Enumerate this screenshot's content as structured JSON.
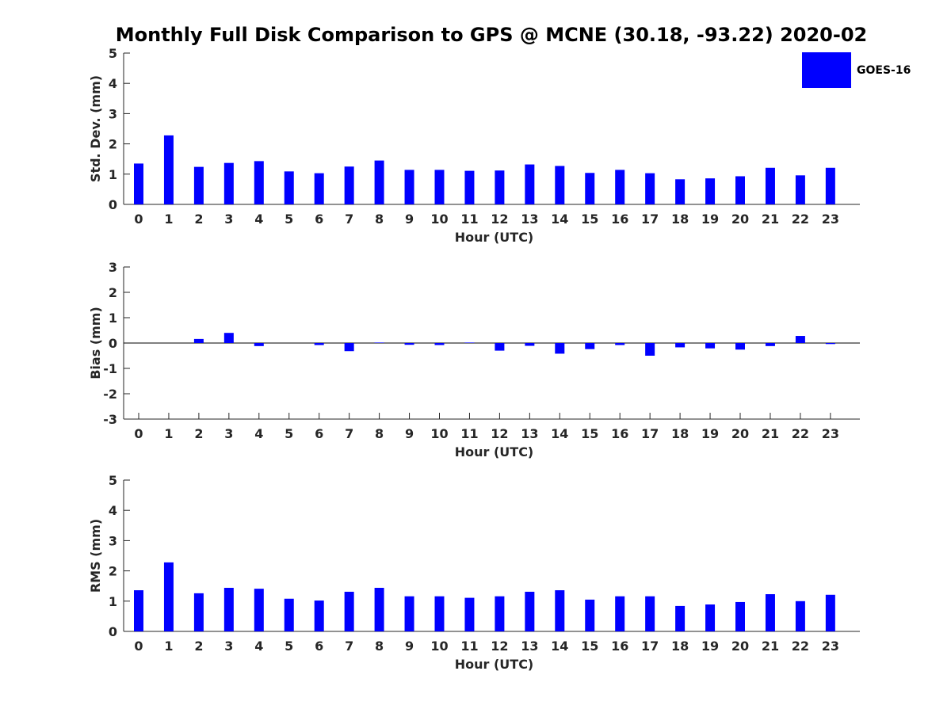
{
  "title": "Monthly Full Disk Comparison to GPS @ MCNE (30.18, -93.22) 2020-02",
  "legend": {
    "label": "GOES-16",
    "color": "#0000ff"
  },
  "chart_data": [
    {
      "type": "bar",
      "xlabel": "Hour (UTC)",
      "ylabel": "Std. Dev. (mm)",
      "ylim": [
        0,
        5
      ],
      "yticks": [
        0,
        1,
        2,
        3,
        4,
        5
      ],
      "categories": [
        0,
        1,
        2,
        3,
        4,
        5,
        6,
        7,
        8,
        9,
        10,
        11,
        12,
        13,
        14,
        15,
        16,
        17,
        18,
        19,
        20,
        21,
        22,
        23
      ],
      "series": [
        {
          "name": "GOES-16",
          "color": "#0000ff",
          "values": [
            1.35,
            2.28,
            1.24,
            1.37,
            1.43,
            1.09,
            1.03,
            1.25,
            1.45,
            1.14,
            1.14,
            1.11,
            1.12,
            1.32,
            1.27,
            1.04,
            1.14,
            1.03,
            0.83,
            0.86,
            0.93,
            1.21,
            0.96,
            1.21
          ]
        }
      ]
    },
    {
      "type": "bar",
      "xlabel": "Hour (UTC)",
      "ylabel": "Bias (mm)",
      "ylim": [
        -3,
        3
      ],
      "yticks": [
        -3,
        -2,
        -1,
        0,
        1,
        2,
        3
      ],
      "categories": [
        0,
        1,
        2,
        3,
        4,
        5,
        6,
        7,
        8,
        9,
        10,
        11,
        12,
        13,
        14,
        15,
        16,
        17,
        18,
        19,
        20,
        21,
        22,
        23
      ],
      "series": [
        {
          "name": "GOES-16",
          "color": "#0000ff",
          "values": [
            0.0,
            0.0,
            0.16,
            0.4,
            -0.12,
            0.0,
            -0.08,
            -0.32,
            0.02,
            -0.07,
            -0.08,
            0.02,
            -0.3,
            -0.11,
            -0.42,
            -0.24,
            -0.08,
            -0.5,
            -0.17,
            -0.21,
            -0.26,
            -0.12,
            0.28,
            -0.04
          ]
        }
      ]
    },
    {
      "type": "bar",
      "xlabel": "Hour (UTC)",
      "ylabel": "RMS (mm)",
      "ylim": [
        0,
        5
      ],
      "yticks": [
        0,
        1,
        2,
        3,
        4,
        5
      ],
      "categories": [
        0,
        1,
        2,
        3,
        4,
        5,
        6,
        7,
        8,
        9,
        10,
        11,
        12,
        13,
        14,
        15,
        16,
        17,
        18,
        19,
        20,
        21,
        22,
        23
      ],
      "series": [
        {
          "name": "GOES-16",
          "color": "#0000ff",
          "values": [
            1.36,
            2.28,
            1.26,
            1.44,
            1.41,
            1.08,
            1.02,
            1.31,
            1.44,
            1.16,
            1.16,
            1.11,
            1.16,
            1.31,
            1.36,
            1.05,
            1.16,
            1.16,
            0.84,
            0.89,
            0.97,
            1.23,
            1.0,
            1.21
          ]
        }
      ]
    }
  ]
}
